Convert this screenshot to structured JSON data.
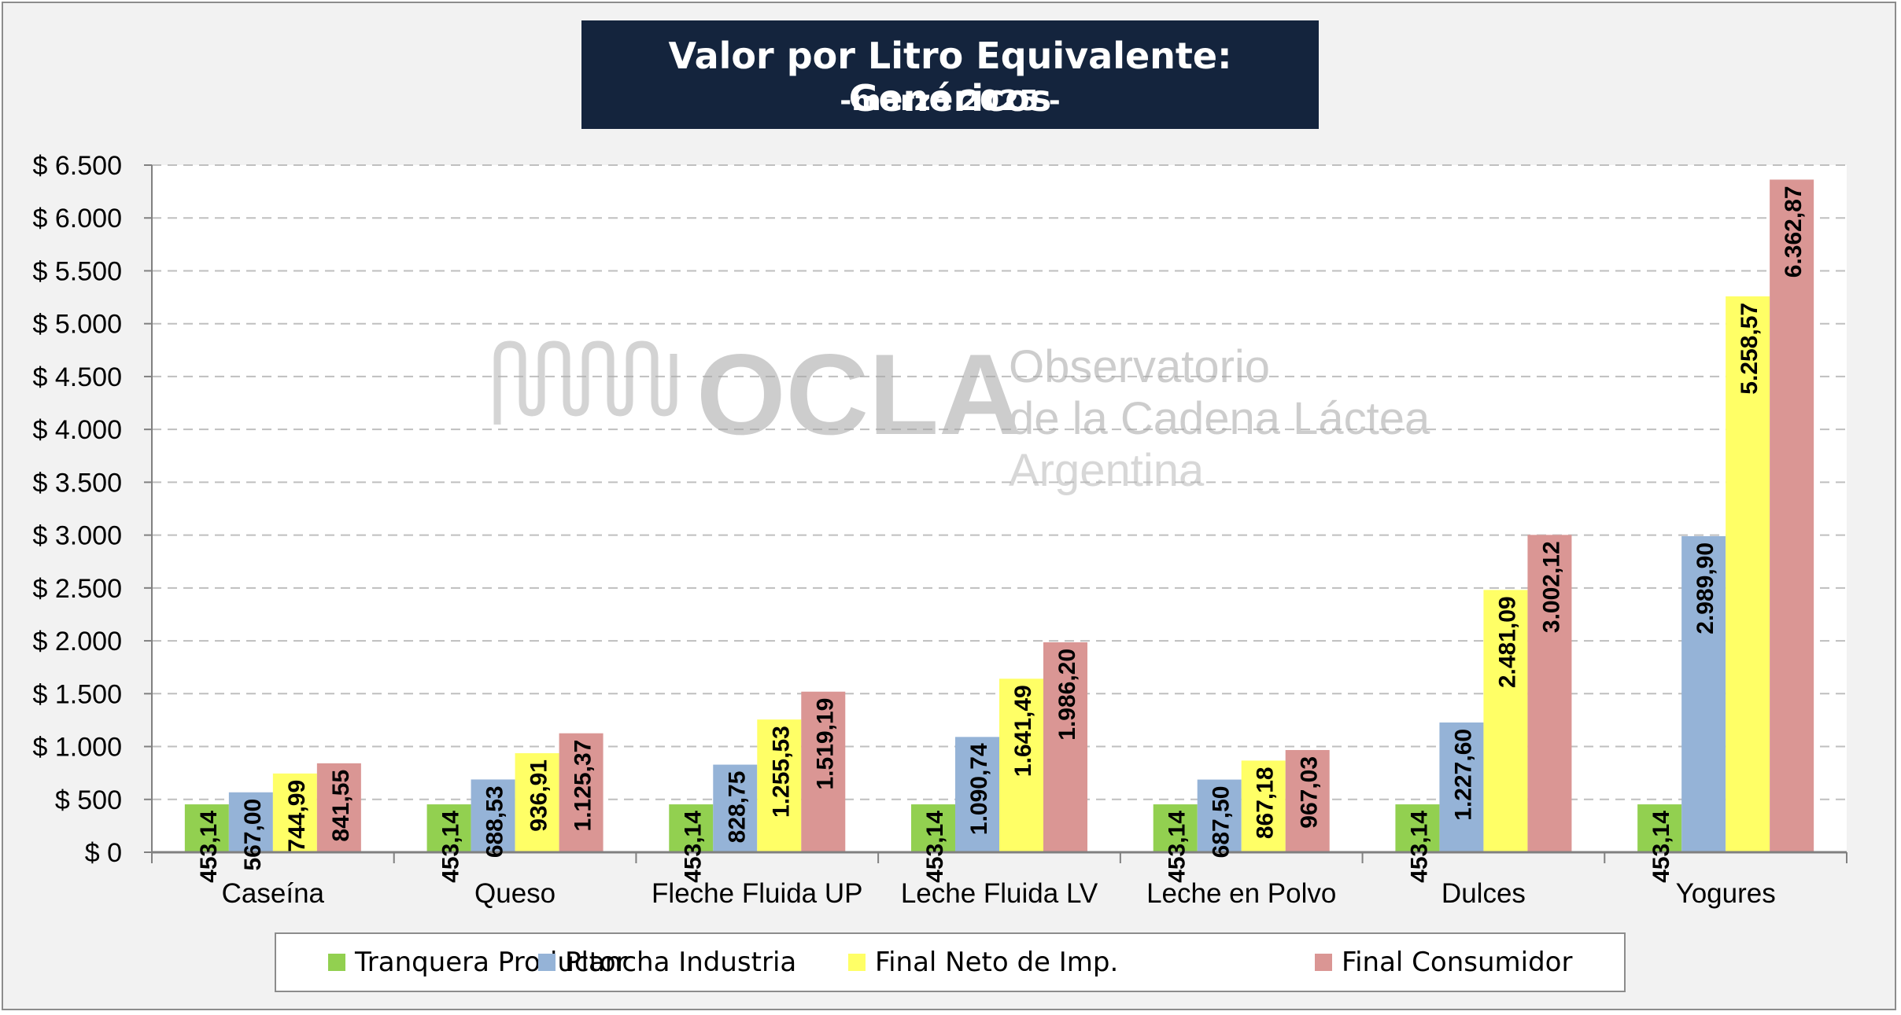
{
  "chart_data": {
    "type": "bar",
    "title": "Valor por Litro Equivalente: Genéricos",
    "subtitle": "-marzo 2025 -",
    "categories": [
      "Caseína",
      "Queso",
      "Fleche Fluida UP",
      "Leche Fluida LV",
      "Leche en Polvo",
      "Dulces",
      "Yogures"
    ],
    "series": [
      {
        "name": "Tranquera Productor",
        "color": "#92d050",
        "values": [
          453.14,
          453.14,
          453.14,
          453.14,
          453.14,
          453.14,
          453.14
        ],
        "labels": [
          "453,14",
          "453,14",
          "453,14",
          "453,14",
          "453,14",
          "453,14",
          "453,14"
        ]
      },
      {
        "name": "Plancha Industria",
        "color": "#95b3d7",
        "values": [
          567.0,
          688.53,
          828.75,
          1090.74,
          687.5,
          1227.6,
          2989.9
        ],
        "labels": [
          "567,00",
          "688,53",
          "828,75",
          "1.090,74",
          "687,50",
          "1.227,60",
          "2.989,90"
        ]
      },
      {
        "name": "Final Neto de Imp.",
        "color": "#ffff66",
        "values": [
          744.99,
          936.91,
          1255.53,
          1641.49,
          867.18,
          2481.09,
          5258.57
        ],
        "labels": [
          "744,99",
          "936,91",
          "1.255,53",
          "1.641,49",
          "867,18",
          "2.481,09",
          "5.258,57"
        ]
      },
      {
        "name": "Final Consumidor",
        "color": "#da9694",
        "values": [
          841.55,
          1125.37,
          1519.19,
          1986.2,
          967.03,
          3002.12,
          6362.87
        ],
        "labels": [
          "841,55",
          "1.125,37",
          "1.519,19",
          "1.986,20",
          "967,03",
          "3.002,12",
          "6.362,87"
        ]
      }
    ],
    "ylim": [
      0,
      6500
    ],
    "yticks": [
      0,
      500,
      1000,
      1500,
      2000,
      2500,
      3000,
      3500,
      4000,
      4500,
      5000,
      5500,
      6000,
      6500
    ],
    "ytick_labels": [
      "$ 0",
      "$ 500",
      "$ 1.000",
      "$ 1.500",
      "$ 2.000",
      "$ 2.500",
      "$ 3.000",
      "$ 3.500",
      "$ 4.000",
      "$ 4.500",
      "$ 5.000",
      "$ 5.500",
      "$ 6.000",
      "$ 6.500"
    ],
    "grid": true,
    "legend_position": "bottom"
  },
  "watermark": {
    "logo": "OCLA",
    "line1": "Observatorio",
    "line2": "de la Cadena Láctea",
    "line3": "Argentina"
  }
}
